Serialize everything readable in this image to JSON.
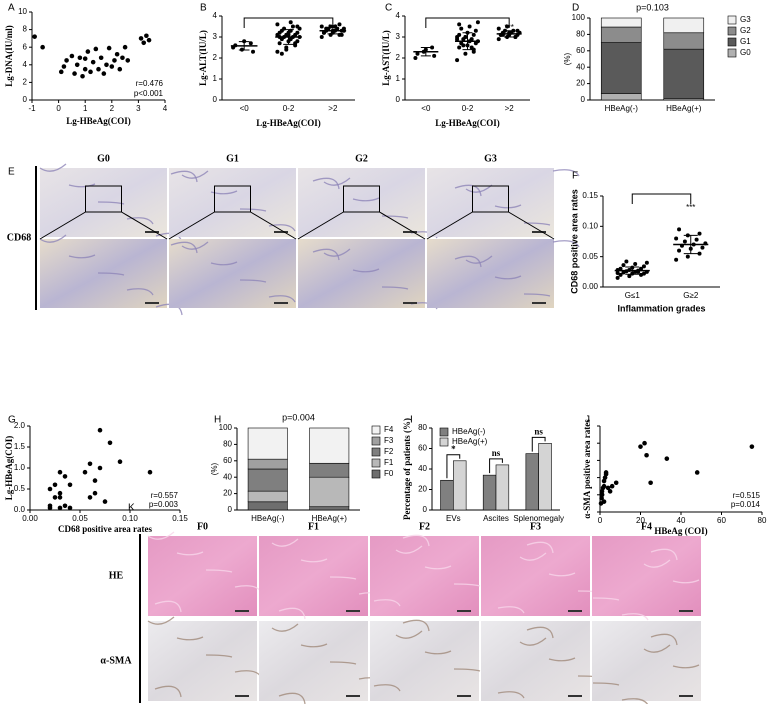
{
  "chart_data": [
    {
      "type": "scatter",
      "label": "A",
      "xlabel": "Lg-HBeAg(COI)",
      "ylabel": "Lg-DNA(IU/ml)",
      "x": [
        -0.9,
        -0.6,
        0.1,
        0.2,
        0.3,
        0.5,
        0.6,
        0.7,
        0.8,
        0.9,
        1.0,
        1.0,
        1.1,
        1.2,
        1.3,
        1.4,
        1.5,
        1.6,
        1.7,
        1.8,
        1.9,
        2.0,
        2.1,
        2.2,
        2.3,
        2.4,
        2.5,
        2.6,
        3.1,
        3.2,
        3.3,
        3.4
      ],
      "y": [
        7.2,
        6.0,
        3.2,
        3.8,
        4.5,
        5.0,
        3.0,
        4.0,
        4.8,
        2.7,
        3.5,
        4.7,
        5.5,
        3.2,
        4.3,
        5.8,
        3.5,
        4.8,
        3.0,
        4.0,
        5.9,
        3.8,
        4.5,
        5.2,
        3.5,
        4.8,
        6.0,
        4.5,
        7.0,
        6.5,
        7.3,
        6.8
      ],
      "xlim": [
        -1,
        4
      ],
      "xticks": [
        -1,
        0,
        1,
        2,
        3,
        4
      ],
      "ylim": [
        0,
        10
      ],
      "yticks": [
        0,
        2,
        4,
        6,
        8,
        10
      ],
      "annotations": [
        "r=0.476",
        "p<0.001"
      ],
      "color": "#000000"
    },
    {
      "type": "strip",
      "label": "B",
      "xlabel": "Lg-HBeAg(COI)",
      "ylabel": "Lg-ALT(IU/L)",
      "categories": [
        "<0",
        "0-2",
        ">2"
      ],
      "series": [
        {
          "values": [
            2.5,
            2.4,
            2.7,
            2.6,
            2.8,
            2.3
          ],
          "mean": 2.58,
          "sd": 0.2
        },
        {
          "values": [
            2.3,
            2.5,
            2.6,
            2.7,
            2.8,
            2.8,
            2.9,
            2.9,
            3.0,
            3.0,
            3.0,
            3.1,
            3.1,
            3.1,
            3.2,
            3.2,
            3.2,
            3.3,
            3.3,
            3.4,
            3.4,
            3.5,
            3.6,
            2.4,
            2.7,
            3.0,
            3.1,
            3.5,
            2.2,
            3.7
          ],
          "mean": 3.0,
          "sd": 0.35
        },
        {
          "values": [
            3.0,
            3.1,
            3.1,
            3.2,
            3.2,
            3.3,
            3.3,
            3.3,
            3.4,
            3.4,
            3.4,
            3.5,
            3.5,
            3.6,
            3.2,
            3.3,
            3.1,
            3.4,
            3.5,
            3.3
          ],
          "mean": 3.3,
          "sd": 0.15
        }
      ],
      "ylim": [
        0,
        4
      ],
      "yticks": [
        0,
        1,
        2,
        3,
        4
      ],
      "significance": "***",
      "color": "#000000"
    },
    {
      "type": "strip",
      "label": "C",
      "xlabel": "Lg-HBeAg(COI)",
      "ylabel": "Lg-AST(IU/L)",
      "categories": [
        "<0",
        "0-2",
        ">2"
      ],
      "series": [
        {
          "values": [
            2.0,
            2.3,
            2.5,
            2.2,
            2.4,
            2.1
          ],
          "mean": 2.3,
          "sd": 0.2
        },
        {
          "values": [
            1.9,
            2.2,
            2.4,
            2.5,
            2.6,
            2.7,
            2.7,
            2.8,
            2.8,
            2.9,
            2.9,
            3.0,
            3.0,
            3.1,
            3.1,
            3.2,
            3.3,
            3.4,
            3.5,
            3.7,
            2.6,
            2.5,
            2.9,
            3.0,
            2.3,
            3.6
          ],
          "mean": 2.8,
          "sd": 0.4
        },
        {
          "values": [
            2.9,
            3.0,
            3.0,
            3.1,
            3.1,
            3.1,
            3.2,
            3.2,
            3.2,
            3.3,
            3.3,
            3.4,
            3.5,
            3.0,
            3.1,
            3.2,
            3.3,
            3.1
          ],
          "mean": 3.15,
          "sd": 0.15
        }
      ],
      "ylim": [
        0,
        4
      ],
      "yticks": [
        0,
        1,
        2,
        3,
        4
      ],
      "significance": "***",
      "color": "#000000"
    },
    {
      "type": "stacked",
      "label": "D",
      "title": "p=0.103",
      "ylabel": "(%)",
      "categories": [
        "HBeAg(-)",
        "HBeAg(+)"
      ],
      "series": [
        {
          "name": "G0",
          "color": "#b0b0b0",
          "values": [
            8,
            2
          ]
        },
        {
          "name": "G1",
          "color": "#5a5a5a",
          "values": [
            62,
            60
          ]
        },
        {
          "name": "G2",
          "color": "#8c8c8c",
          "values": [
            19,
            20
          ]
        },
        {
          "name": "G3",
          "color": "#f0f0f0",
          "values": [
            11,
            18
          ]
        }
      ],
      "ylim": [
        0,
        100
      ],
      "yticks": [
        0,
        20,
        40,
        60,
        80,
        100
      ],
      "legend": "right"
    },
    {
      "type": "strip",
      "label": "F",
      "xlabel": "Inflammation grades",
      "ylabel": "CD68 positive area rates",
      "categories": [
        "G≤1",
        "G≥2"
      ],
      "series": [
        {
          "values": [
            0.015,
            0.018,
            0.02,
            0.02,
            0.022,
            0.022,
            0.024,
            0.025,
            0.025,
            0.026,
            0.027,
            0.028,
            0.028,
            0.03,
            0.03,
            0.032,
            0.034,
            0.036,
            0.038,
            0.04,
            0.042,
            0.025,
            0.023
          ],
          "mean": 0.027,
          "sd": 0.006
        },
        {
          "values": [
            0.045,
            0.05,
            0.055,
            0.06,
            0.063,
            0.065,
            0.068,
            0.07,
            0.072,
            0.075,
            0.078,
            0.08,
            0.085,
            0.088,
            0.095
          ],
          "mean": 0.07,
          "sd": 0.015
        }
      ],
      "ylim": [
        0,
        0.15
      ],
      "yticks": [
        {
          "value": 0,
          "label": "0.00"
        },
        0.05,
        {
          "value": 0.1,
          "label": "0.10"
        },
        0.15
      ],
      "significance": "***",
      "color": "#000000"
    },
    {
      "type": "scatter",
      "label": "G",
      "xlabel": "CD68 positive area rates",
      "ylabel": "Lg-HBeAg(COI)",
      "x": [
        0.02,
        0.02,
        0.025,
        0.025,
        0.03,
        0.03,
        0.03,
        0.035,
        0.035,
        0.04,
        0.04,
        0.03,
        0.055,
        0.06,
        0.06,
        0.065,
        0.065,
        0.07,
        0.07,
        0.075,
        0.09,
        0.12,
        0.08,
        0.02
      ],
      "y": [
        0.5,
        0.1,
        0.6,
        0.3,
        0.05,
        0.4,
        0.9,
        0.1,
        0.8,
        0.6,
        0.05,
        0.3,
        0.9,
        0.3,
        1.1,
        0.4,
        0.7,
        1.0,
        1.9,
        0.2,
        1.15,
        0.9,
        1.6,
        0.05
      ],
      "xlim": [
        0,
        0.15
      ],
      "xticks": [
        {
          "value": 0,
          "label": "0.00"
        },
        0.05,
        {
          "value": 0.1,
          "label": "0.10"
        },
        0.15
      ],
      "ylim": [
        0,
        2
      ],
      "yticks": [
        {
          "value": 0,
          "label": "0.0"
        },
        0.5,
        {
          "value": 1,
          "label": "1.0"
        },
        1.5,
        {
          "value": 2,
          "label": "2.0"
        }
      ],
      "annotations": [
        "r=0.557",
        "p=0.003"
      ],
      "color": "#000000"
    },
    {
      "type": "stacked",
      "label": "H",
      "title": "p=0.004",
      "ylabel": "(%)",
      "categories": [
        "HBeAg(-)",
        "HBeAg(+)"
      ],
      "series": [
        {
          "name": "F0",
          "color": "#6e6e6e",
          "values": [
            10,
            4
          ]
        },
        {
          "name": "F1",
          "color": "#b8b8b8",
          "values": [
            13,
            36
          ]
        },
        {
          "name": "F2",
          "color": "#7f7f7f",
          "values": [
            27,
            17
          ]
        },
        {
          "name": "F3",
          "color": "#a0a0a0",
          "values": [
            12,
            0
          ]
        },
        {
          "name": "F4",
          "color": "#f2f2f2",
          "values": [
            38,
            43
          ]
        }
      ],
      "ylim": [
        0,
        100
      ],
      "yticks": [
        0,
        20,
        40,
        60,
        80,
        100
      ],
      "legend": "right"
    },
    {
      "type": "bar",
      "label": "I",
      "ylabel": "Percentage of patients (%)",
      "categories": [
        "EVs",
        "Ascites",
        "Splenomegaly"
      ],
      "series": [
        {
          "name": "HBeAg(-)",
          "color": "#808080",
          "values": [
            29,
            34,
            55
          ]
        },
        {
          "name": "HBeAg(+)",
          "color": "#d4d4d4",
          "values": [
            48,
            44,
            65
          ]
        }
      ],
      "ylim": [
        0,
        80
      ],
      "yticks": [
        0,
        20,
        40,
        60,
        80
      ],
      "significance": [
        "*",
        "ns",
        "ns"
      ],
      "legend": "upper left"
    },
    {
      "type": "scatter",
      "label": "J",
      "xlabel": "HBeAg (COI)",
      "ylabel": "α-SMA positive area rates",
      "x": [
        0.5,
        0.8,
        1,
        1,
        1.5,
        2,
        2,
        2.5,
        3,
        3,
        4,
        5,
        6,
        8,
        1,
        2,
        20,
        22,
        23,
        25,
        33,
        48,
        75
      ],
      "y": [
        5,
        8,
        10,
        12,
        14,
        15,
        18,
        20,
        22,
        23,
        14,
        12,
        15,
        17,
        10,
        6,
        38,
        40,
        33,
        17,
        31,
        23,
        38
      ],
      "xlim": [
        0,
        80
      ],
      "xticks": [
        0,
        20,
        40,
        60,
        80
      ],
      "ylim": [
        0,
        50
      ],
      "annotations": [
        "r=0.515",
        "p=0.014"
      ],
      "color": "#000000"
    }
  ],
  "images": {
    "E": {
      "label": "E",
      "columns": [
        "G0",
        "G1",
        "G2",
        "G3"
      ],
      "rows": [
        "CD68"
      ]
    },
    "K": {
      "label": "K",
      "columns": [
        "F0",
        "F1",
        "F2",
        "F3",
        "F4"
      ],
      "rows": [
        "HE",
        "α-SMA"
      ]
    }
  }
}
